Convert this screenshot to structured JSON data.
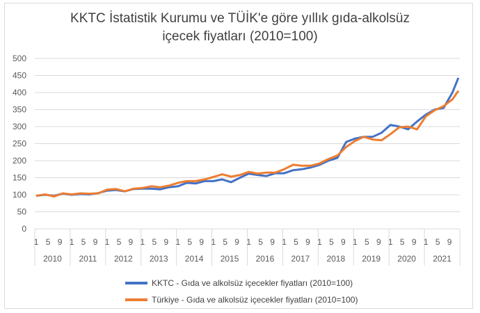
{
  "chart_data": {
    "type": "line",
    "title_line1": "KKTC İstatistik Kurumu ve TÜİK'e göre yıllık gıda-alkolsüz",
    "title_line2": "içecek fiyatları (2010=100)",
    "ylim": [
      0,
      500
    ],
    "yticks": [
      "0",
      "50",
      "100",
      "150",
      "200",
      "250",
      "300",
      "350",
      "400",
      "450",
      "500"
    ],
    "years": [
      "2010",
      "2011",
      "2012",
      "2013",
      "2014",
      "2015",
      "2016",
      "2017",
      "2018",
      "2019",
      "2020",
      "2021"
    ],
    "month_ticks": [
      "1",
      "5",
      "9"
    ],
    "grid": true,
    "legend_position": "bottom",
    "x_months": [
      1,
      4,
      7,
      10,
      13,
      16,
      19,
      22,
      25,
      28,
      31,
      34,
      37,
      40,
      43,
      46,
      49,
      52,
      55,
      58,
      61,
      64,
      67,
      70,
      73,
      76,
      79,
      82,
      85,
      88,
      91,
      94,
      97,
      100,
      103,
      106,
      109,
      112,
      115,
      118,
      121,
      124,
      127,
      130,
      133,
      136,
      139,
      142,
      144
    ],
    "series": [
      {
        "name": "KKTC  - Gıda ve alkolsüz içecekler fiyatları (2010=100)",
        "color": "#4472C4",
        "values": [
          97,
          100,
          97,
          103,
          100,
          102,
          101,
          105,
          112,
          114,
          110,
          117,
          118,
          118,
          116,
          122,
          125,
          135,
          133,
          140,
          140,
          145,
          137,
          150,
          162,
          158,
          155,
          163,
          163,
          172,
          175,
          180,
          188,
          200,
          208,
          255,
          265,
          270,
          270,
          282,
          305,
          300,
          292,
          315,
          335,
          350,
          355,
          400,
          443
        ]
      },
      {
        "name": "Türkiye - Gıda ve alkolsüz içecekler fiyatları (2010=100)",
        "color": "#ED7D31",
        "values": [
          97,
          101,
          95,
          104,
          101,
          104,
          103,
          104,
          115,
          117,
          110,
          118,
          120,
          125,
          122,
          127,
          135,
          140,
          140,
          145,
          152,
          160,
          153,
          158,
          167,
          162,
          165,
          165,
          175,
          188,
          185,
          185,
          192,
          205,
          215,
          240,
          258,
          270,
          262,
          260,
          278,
          298,
          300,
          292,
          330,
          348,
          360,
          380,
          405
        ]
      }
    ]
  }
}
